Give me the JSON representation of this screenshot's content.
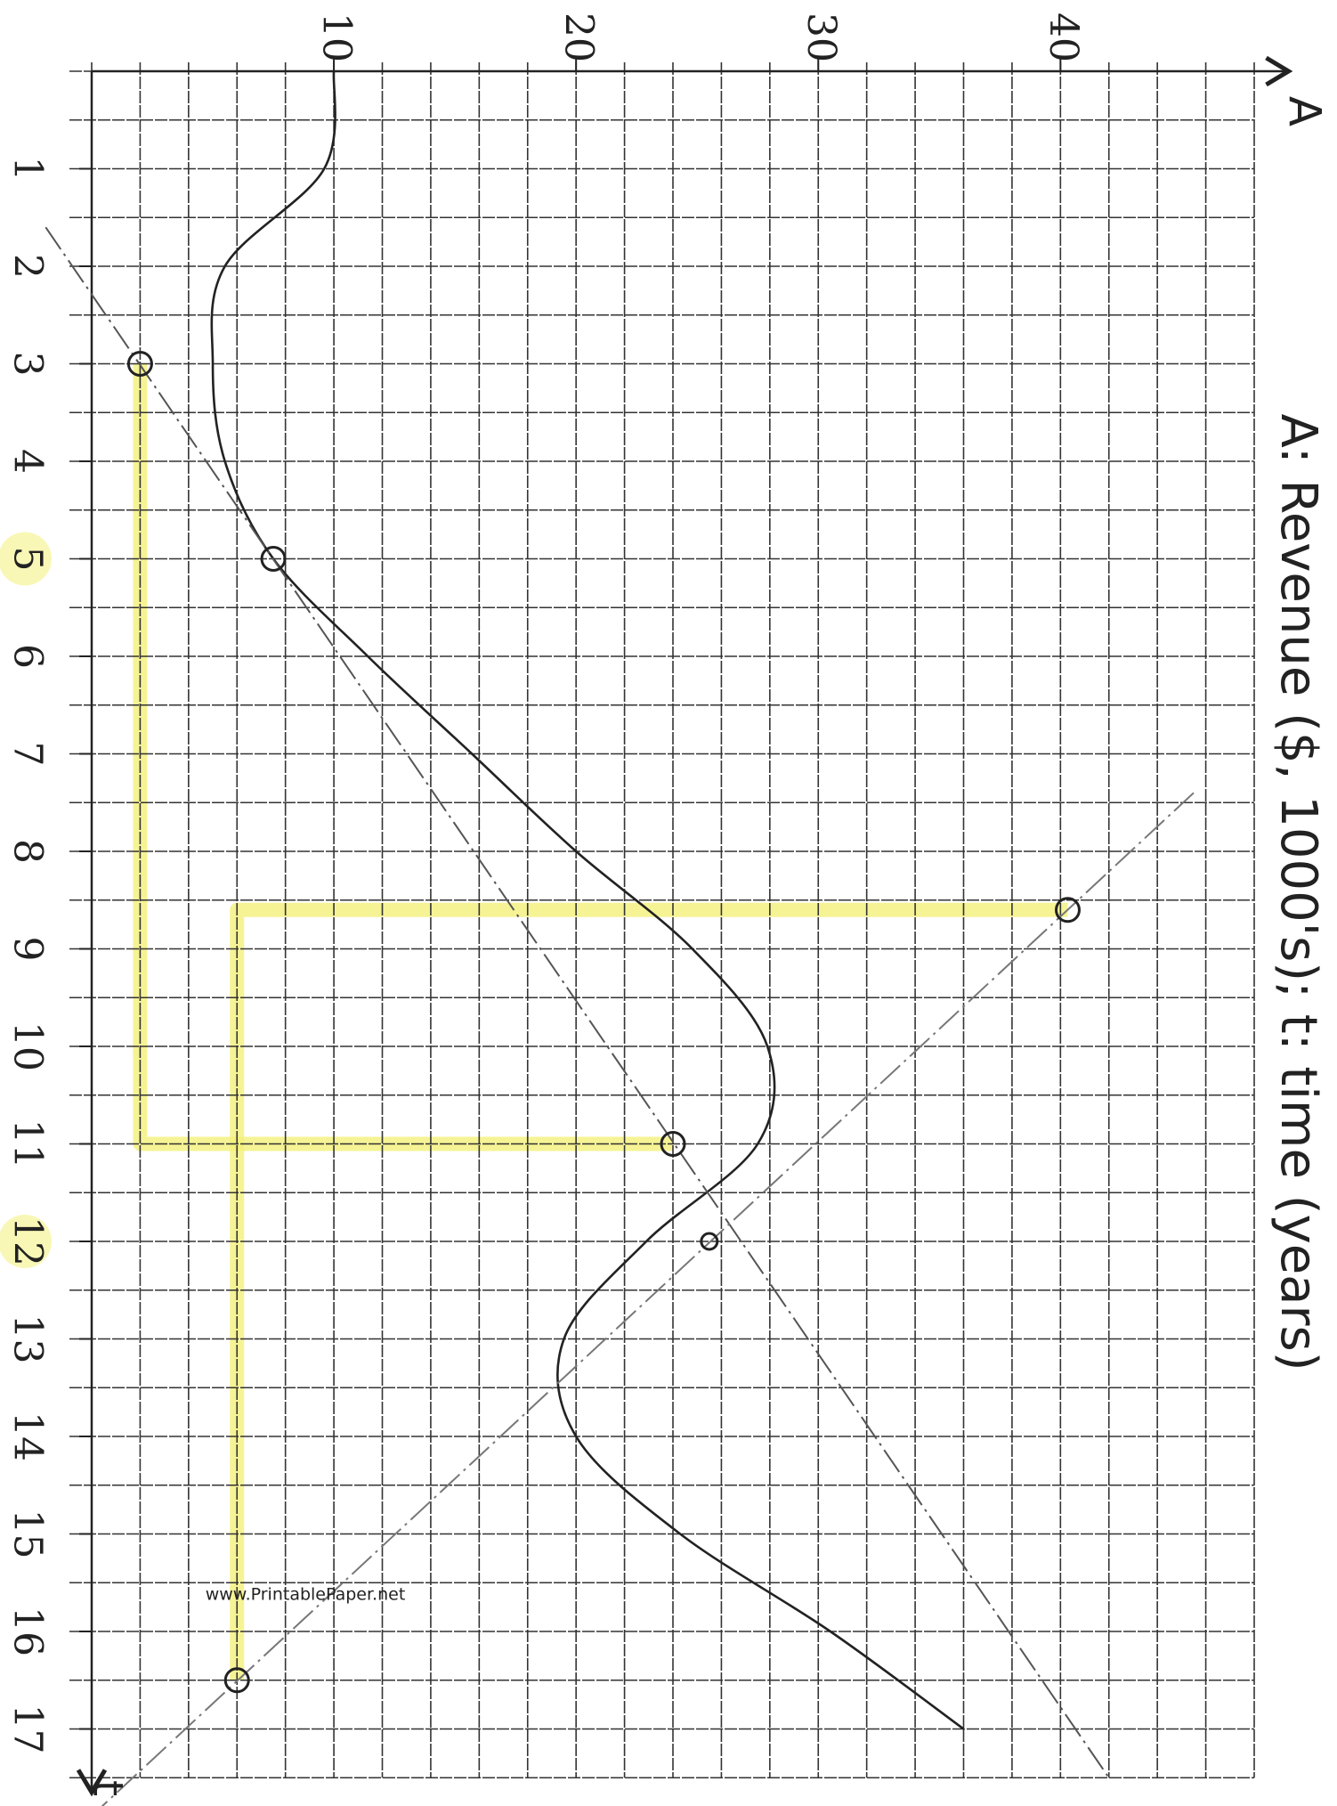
{
  "chart_data": {
    "type": "line",
    "title": "A: Revenue ($, 1000's); t: time (years)",
    "x_label": "t",
    "y_label": "A",
    "watermark": "www.PrintablePaper.net",
    "xlim": [
      0,
      17.5
    ],
    "ylim": [
      0,
      48
    ],
    "xticks": [
      1,
      2,
      3,
      4,
      5,
      6,
      7,
      8,
      9,
      10,
      11,
      12,
      13,
      14,
      15,
      16,
      17
    ],
    "yticks": [
      10,
      20,
      30,
      40
    ],
    "highlighted_xticks": [
      5,
      12
    ],
    "grid": true,
    "highlight_color": "#f4f07a",
    "series": [
      {
        "color": "#222222",
        "style": "solid",
        "x": [
          0,
          1,
          2,
          3,
          4,
          5,
          6,
          7,
          8,
          9,
          10,
          11,
          12,
          13,
          14,
          15,
          16,
          17
        ],
        "values": [
          10,
          9.6,
          5.5,
          5,
          5.5,
          7.5,
          11.4,
          15.7,
          20,
          24.8,
          27.9,
          27.5,
          22.9,
          19.5,
          20,
          24.3,
          30.5,
          36
        ]
      },
      {
        "color": "#555555",
        "style": "dashed",
        "x": [
          1.6,
          17.5
        ],
        "values": [
          -1.9,
          42
        ]
      },
      {
        "color": "#777777",
        "style": "dashed",
        "x": [
          7.4,
          17.8
        ],
        "values": [
          45.5,
          0.4
        ]
      }
    ],
    "points": {
      "x": [
        3,
        8.6,
        11,
        12,
        16.5,
        5
      ],
      "values": [
        2,
        40.3,
        24,
        25.5,
        6,
        7.5
      ]
    }
  }
}
